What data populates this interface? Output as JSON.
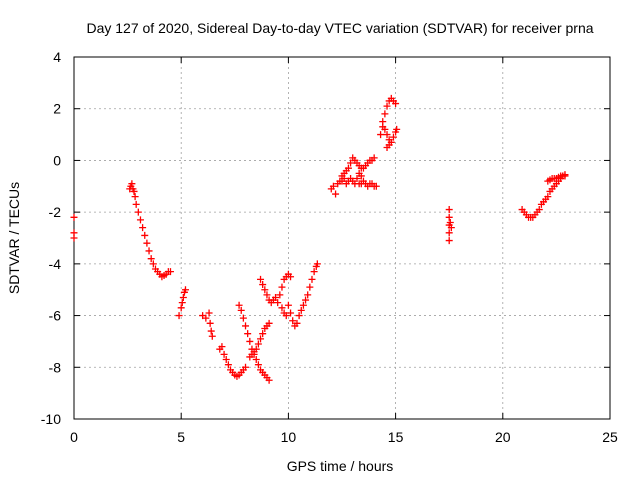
{
  "chart_data": {
    "type": "scatter",
    "title": "Day 127 of 2020, Sidereal Day-to-day VTEC variation (SDTVAR) for receiver prna",
    "xlabel": "GPS time / hours",
    "ylabel": "SDTVAR / TECUs",
    "xlim": [
      0,
      25
    ],
    "ylim": [
      -10,
      4
    ],
    "xticks": [
      0,
      5,
      10,
      15,
      20,
      25
    ],
    "yticks": [
      4,
      2,
      0,
      -2,
      -4,
      -6,
      -8,
      -10
    ],
    "grid": true,
    "marker": "+",
    "color": "#ff0000",
    "points": [
      [
        0.0,
        -2.2
      ],
      [
        0.0,
        -2.8
      ],
      [
        0.0,
        -3.0
      ],
      [
        2.6,
        -1.1
      ],
      [
        2.65,
        -1.0
      ],
      [
        2.7,
        -0.9
      ],
      [
        2.75,
        -1.1
      ],
      [
        2.8,
        -1.2
      ],
      [
        2.85,
        -1.4
      ],
      [
        2.9,
        -1.7
      ],
      [
        3.0,
        -2.0
      ],
      [
        3.1,
        -2.3
      ],
      [
        3.2,
        -2.6
      ],
      [
        3.3,
        -2.9
      ],
      [
        3.4,
        -3.2
      ],
      [
        3.5,
        -3.5
      ],
      [
        3.6,
        -3.8
      ],
      [
        3.7,
        -4.0
      ],
      [
        3.8,
        -4.2
      ],
      [
        3.9,
        -4.3
      ],
      [
        4.0,
        -4.4
      ],
      [
        4.1,
        -4.5
      ],
      [
        4.2,
        -4.45
      ],
      [
        4.3,
        -4.4
      ],
      [
        4.4,
        -4.3
      ],
      [
        4.5,
        -4.3
      ],
      [
        4.9,
        -6.0
      ],
      [
        5.0,
        -5.7
      ],
      [
        5.05,
        -5.5
      ],
      [
        5.1,
        -5.3
      ],
      [
        5.15,
        -5.1
      ],
      [
        5.2,
        -5.0
      ],
      [
        6.0,
        -6.0
      ],
      [
        6.15,
        -6.1
      ],
      [
        6.3,
        -5.9
      ],
      [
        6.35,
        -6.3
      ],
      [
        6.4,
        -6.6
      ],
      [
        6.45,
        -6.8
      ],
      [
        6.8,
        -7.3
      ],
      [
        6.9,
        -7.2
      ],
      [
        7.0,
        -7.5
      ],
      [
        7.1,
        -7.7
      ],
      [
        7.2,
        -7.9
      ],
      [
        7.3,
        -8.1
      ],
      [
        7.4,
        -8.2
      ],
      [
        7.5,
        -8.3
      ],
      [
        7.6,
        -8.35
      ],
      [
        7.7,
        -8.3
      ],
      [
        7.8,
        -8.2
      ],
      [
        7.9,
        -8.1
      ],
      [
        8.0,
        -8.0
      ],
      [
        7.7,
        -5.6
      ],
      [
        7.8,
        -5.8
      ],
      [
        7.9,
        -6.1
      ],
      [
        8.0,
        -6.4
      ],
      [
        8.1,
        -6.7
      ],
      [
        8.2,
        -7.0
      ],
      [
        8.3,
        -7.3
      ],
      [
        8.4,
        -7.5
      ],
      [
        8.5,
        -7.7
      ],
      [
        8.6,
        -7.9
      ],
      [
        8.7,
        -8.1
      ],
      [
        8.8,
        -8.2
      ],
      [
        8.9,
        -8.3
      ],
      [
        9.0,
        -8.4
      ],
      [
        9.1,
        -8.5
      ],
      [
        8.2,
        -7.6
      ],
      [
        8.3,
        -7.5
      ],
      [
        8.4,
        -7.4
      ],
      [
        8.5,
        -7.3
      ],
      [
        8.6,
        -7.1
      ],
      [
        8.7,
        -6.9
      ],
      [
        8.8,
        -6.7
      ],
      [
        8.9,
        -6.5
      ],
      [
        9.0,
        -6.4
      ],
      [
        9.1,
        -6.3
      ],
      [
        8.7,
        -4.6
      ],
      [
        8.8,
        -4.8
      ],
      [
        8.9,
        -5.0
      ],
      [
        9.0,
        -5.2
      ],
      [
        9.1,
        -5.4
      ],
      [
        9.2,
        -5.5
      ],
      [
        9.3,
        -5.4
      ],
      [
        9.4,
        -5.3
      ],
      [
        9.5,
        -5.5
      ],
      [
        9.6,
        -5.2
      ],
      [
        9.7,
        -4.9
      ],
      [
        9.8,
        -4.6
      ],
      [
        9.9,
        -4.5
      ],
      [
        10.0,
        -4.4
      ],
      [
        10.1,
        -4.5
      ],
      [
        9.7,
        -5.7
      ],
      [
        9.8,
        -5.9
      ],
      [
        9.9,
        -6.0
      ],
      [
        10.0,
        -5.6
      ],
      [
        10.1,
        -5.9
      ],
      [
        10.2,
        -6.2
      ],
      [
        10.3,
        -6.4
      ],
      [
        10.4,
        -6.3
      ],
      [
        10.5,
        -6.0
      ],
      [
        10.6,
        -5.8
      ],
      [
        10.7,
        -5.6
      ],
      [
        10.8,
        -5.4
      ],
      [
        10.9,
        -5.2
      ],
      [
        11.0,
        -4.9
      ],
      [
        11.1,
        -4.6
      ],
      [
        11.2,
        -4.3
      ],
      [
        11.3,
        -4.1
      ],
      [
        11.35,
        -4.0
      ],
      [
        12.0,
        -1.1
      ],
      [
        12.1,
        -1.0
      ],
      [
        12.2,
        -1.3
      ],
      [
        12.3,
        -0.9
      ],
      [
        12.4,
        -0.8
      ],
      [
        12.5,
        -0.8
      ],
      [
        12.6,
        -0.7
      ],
      [
        12.7,
        -0.9
      ],
      [
        12.8,
        -0.8
      ],
      [
        12.9,
        -0.7
      ],
      [
        13.0,
        -0.8
      ],
      [
        13.1,
        -0.9
      ],
      [
        13.2,
        -0.7
      ],
      [
        13.3,
        -0.9
      ],
      [
        13.4,
        -0.9
      ],
      [
        13.5,
        -0.8
      ],
      [
        13.6,
        -0.9
      ],
      [
        13.7,
        -1.0
      ],
      [
        13.8,
        -0.9
      ],
      [
        13.9,
        -0.9
      ],
      [
        14.0,
        -1.0
      ],
      [
        14.1,
        -1.0
      ],
      [
        12.9,
        -0.1
      ],
      [
        13.0,
        0.1
      ],
      [
        13.1,
        0.0
      ],
      [
        13.2,
        -0.1
      ],
      [
        13.3,
        -0.2
      ],
      [
        13.4,
        -0.3
      ],
      [
        13.5,
        -0.3
      ],
      [
        13.6,
        -0.2
      ],
      [
        13.7,
        -0.1
      ],
      [
        13.8,
        0.0
      ],
      [
        13.9,
        0.0
      ],
      [
        14.0,
        0.1
      ],
      [
        12.5,
        -0.6
      ],
      [
        12.6,
        -0.5
      ],
      [
        12.7,
        -0.4
      ],
      [
        12.8,
        -0.3
      ],
      [
        13.3,
        -0.5
      ],
      [
        13.4,
        -0.6
      ],
      [
        14.3,
        1.0
      ],
      [
        14.4,
        1.5
      ],
      [
        14.5,
        1.8
      ],
      [
        14.6,
        2.1
      ],
      [
        14.7,
        2.3
      ],
      [
        14.8,
        2.4
      ],
      [
        14.9,
        2.3
      ],
      [
        15.0,
        2.2
      ],
      [
        14.4,
        1.3
      ],
      [
        14.5,
        1.2
      ],
      [
        14.6,
        1.0
      ],
      [
        14.7,
        0.8
      ],
      [
        14.6,
        0.5
      ],
      [
        14.7,
        0.6
      ],
      [
        14.8,
        0.7
      ],
      [
        14.9,
        0.9
      ],
      [
        15.0,
        1.1
      ],
      [
        15.05,
        1.2
      ],
      [
        17.5,
        -1.9
      ],
      [
        17.5,
        -2.2
      ],
      [
        17.5,
        -2.5
      ],
      [
        17.5,
        -2.8
      ],
      [
        17.5,
        -3.1
      ],
      [
        17.55,
        -2.4
      ],
      [
        17.6,
        -2.6
      ],
      [
        20.9,
        -1.9
      ],
      [
        21.0,
        -2.0
      ],
      [
        21.1,
        -2.1
      ],
      [
        21.2,
        -2.2
      ],
      [
        21.3,
        -2.2
      ],
      [
        21.4,
        -2.2
      ],
      [
        21.5,
        -2.1
      ],
      [
        21.6,
        -2.0
      ],
      [
        21.7,
        -1.9
      ],
      [
        21.8,
        -1.7
      ],
      [
        21.9,
        -1.6
      ],
      [
        22.0,
        -1.5
      ],
      [
        22.1,
        -1.4
      ],
      [
        22.2,
        -1.2
      ],
      [
        22.3,
        -1.1
      ],
      [
        22.4,
        -1.0
      ],
      [
        22.5,
        -0.9
      ],
      [
        22.6,
        -0.8
      ],
      [
        22.7,
        -0.7
      ],
      [
        22.8,
        -0.6
      ],
      [
        22.9,
        -0.55
      ],
      [
        22.1,
        -0.8
      ],
      [
        22.2,
        -0.75
      ],
      [
        22.3,
        -0.7
      ],
      [
        22.4,
        -0.7
      ],
      [
        22.5,
        -0.7
      ],
      [
        22.6,
        -0.65
      ],
      [
        22.7,
        -0.6
      ],
      [
        22.8,
        -0.6
      ],
      [
        22.9,
        -0.6
      ]
    ]
  }
}
